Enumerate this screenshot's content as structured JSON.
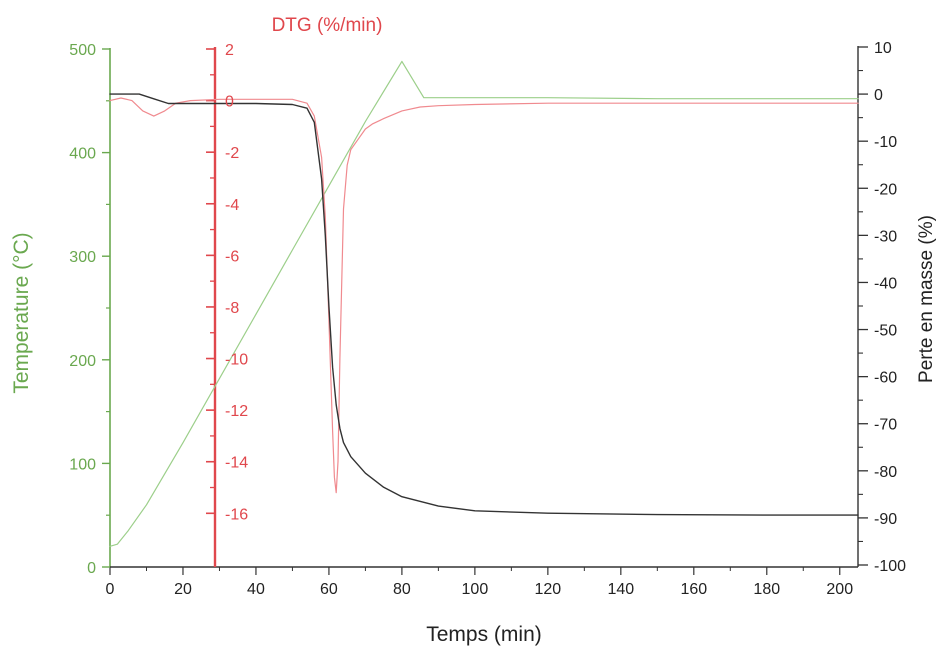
{
  "chart_data": {
    "type": "line",
    "xlabel": "Temps (min)",
    "x_ticks": [
      "0",
      "20",
      "40",
      "60",
      "80",
      "100",
      "120",
      "140",
      "160",
      "180",
      "200"
    ],
    "xlim": [
      0,
      205
    ],
    "axes": {
      "temperature": {
        "label": "Temperature (°C)",
        "ticks": [
          "0",
          "100",
          "200",
          "300",
          "400",
          "500"
        ],
        "ylim": [
          0,
          500
        ],
        "color": "#6aa84f"
      },
      "dtg": {
        "label": "DTG (%/min)",
        "ticks": [
          "2",
          "0",
          "-2",
          "-4",
          "-6",
          "-8",
          "-10",
          "-12",
          "-14",
          "-16"
        ],
        "ylim": [
          -17.5,
          2
        ],
        "color": "#e0474c"
      },
      "mass_loss": {
        "label": "Perte en masse (%)",
        "ticks": [
          "10",
          "0",
          "-10",
          "-20",
          "-30",
          "-40",
          "-50",
          "-60",
          "-70",
          "-80",
          "-90",
          "-100"
        ],
        "ylim": [
          -100,
          10
        ],
        "color": "#222222"
      }
    },
    "series": [
      {
        "axis": "temperature",
        "color": "#9ccf8a",
        "x": [
          0,
          2,
          5,
          10,
          20,
          30,
          40,
          50,
          60,
          70,
          80,
          86,
          90,
          100,
          120,
          150,
          180,
          205
        ],
        "y": [
          20,
          22,
          35,
          60,
          120,
          182,
          244,
          306,
          368,
          430,
          488,
          453,
          453,
          453,
          453,
          452,
          452,
          452
        ]
      },
      {
        "axis": "dtg",
        "color": "#f08a8f",
        "x": [
          0,
          3,
          6,
          9,
          12,
          15,
          18,
          22,
          30,
          40,
          50,
          54,
          56,
          58,
          59,
          60,
          61,
          61.5,
          62,
          62.5,
          63,
          64,
          65,
          66,
          68,
          70,
          72,
          75,
          80,
          85,
          90,
          100,
          120,
          150,
          180,
          205
        ],
        "y": [
          0,
          0.1,
          0,
          -0.4,
          -0.6,
          -0.4,
          -0.1,
          0,
          0.05,
          0.05,
          0.05,
          -0.1,
          -0.6,
          -2.2,
          -4.5,
          -8.5,
          -12.8,
          -14.6,
          -15.2,
          -14,
          -10,
          -4.2,
          -2.5,
          -1.9,
          -1.5,
          -1.1,
          -0.9,
          -0.7,
          -0.4,
          -0.25,
          -0.2,
          -0.15,
          -0.1,
          -0.1,
          -0.1,
          -0.1
        ]
      },
      {
        "axis": "mass_loss",
        "color": "#333333",
        "x": [
          0,
          4,
          8,
          12,
          16,
          20,
          30,
          40,
          50,
          54,
          56,
          58,
          59,
          60,
          61,
          62,
          63,
          64,
          66,
          70,
          75,
          80,
          90,
          100,
          120,
          150,
          180,
          205
        ],
        "y": [
          0,
          0,
          0,
          -1,
          -2,
          -2,
          -2,
          -2,
          -2.2,
          -3,
          -6,
          -18,
          -30,
          -45,
          -58,
          -66,
          -71,
          -74,
          -77,
          -80.5,
          -83.5,
          -85.5,
          -87.5,
          -88.5,
          -89,
          -89.3,
          -89.4,
          -89.4
        ]
      }
    ]
  }
}
